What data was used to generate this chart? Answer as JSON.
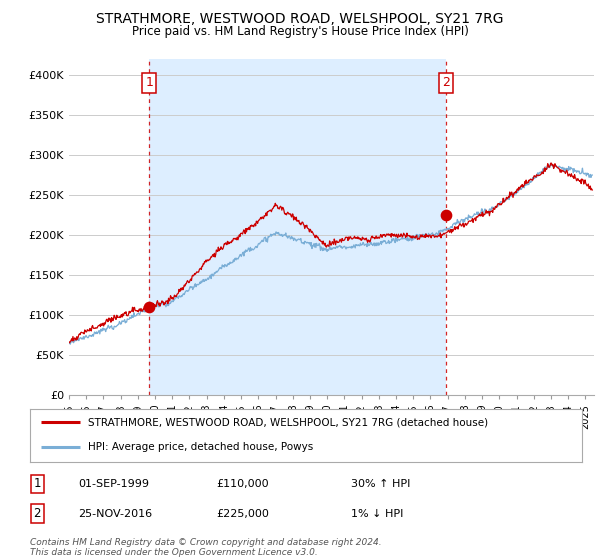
{
  "title": "STRATHMORE, WESTWOOD ROAD, WELSHPOOL, SY21 7RG",
  "subtitle": "Price paid vs. HM Land Registry's House Price Index (HPI)",
  "ylabel_ticks": [
    "£0",
    "£50K",
    "£100K",
    "£150K",
    "£200K",
    "£250K",
    "£300K",
    "£350K",
    "£400K"
  ],
  "ytick_values": [
    0,
    50000,
    100000,
    150000,
    200000,
    250000,
    300000,
    350000,
    400000
  ],
  "ylim": [
    0,
    420000
  ],
  "xlim_start": 1995.0,
  "xlim_end": 2025.5,
  "sale1_year": 1999.67,
  "sale1_price": 110000,
  "sale2_year": 2016.9,
  "sale2_price": 225000,
  "sale_color": "#cc0000",
  "hpi_color": "#7aaed6",
  "shade_color": "#ddeeff",
  "vline_color": "#cc0000",
  "background_color": "#ffffff",
  "grid_color": "#cccccc",
  "legend_label_house": "STRATHMORE, WESTWOOD ROAD, WELSHPOOL, SY21 7RG (detached house)",
  "legend_label_hpi": "HPI: Average price, detached house, Powys",
  "footer": "Contains HM Land Registry data © Crown copyright and database right 2024.\nThis data is licensed under the Open Government Licence v3.0.",
  "note1_date": "01-SEP-1999",
  "note1_price": "£110,000",
  "note1_hpi": "30% ↑ HPI",
  "note2_date": "25-NOV-2016",
  "note2_price": "£225,000",
  "note2_hpi": "1% ↓ HPI"
}
